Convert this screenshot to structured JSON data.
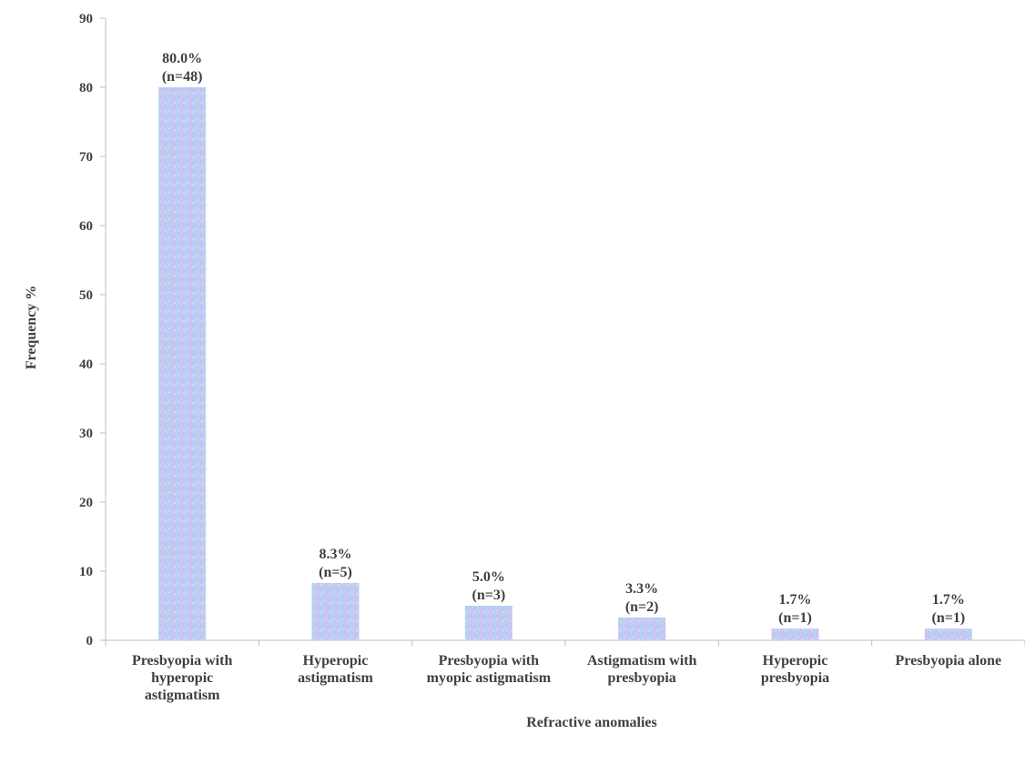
{
  "chart_data": {
    "type": "bar",
    "title": "",
    "xlabel": "Refractive anomalies",
    "ylabel": "Frequency %",
    "ylim": [
      0,
      90
    ],
    "yticks": [
      0,
      10,
      20,
      30,
      40,
      50,
      60,
      70,
      80,
      90
    ],
    "grid": false,
    "legend": "none",
    "bar_color": "#b8cdf2",
    "categories": [
      "Presbyopia with hyperopic astigmatism",
      "Hyperopic astigmatism",
      "Presbyopia with myopic astigmatism",
      "Astigmatism with presbyopia",
      "Hyperopic presbyopia",
      "Presbyopia alone"
    ],
    "category_lines": [
      [
        "Presbyopia with",
        "hyperopic",
        "astigmatism"
      ],
      [
        "Hyperopic",
        "astigmatism"
      ],
      [
        "Presbyopia with",
        "myopic astigmatism"
      ],
      [
        "Astigmatism with",
        "presbyopia"
      ],
      [
        "Hyperopic",
        "presbyopia"
      ],
      [
        "Presbyopia alone"
      ]
    ],
    "values": [
      80.0,
      8.3,
      5.0,
      3.3,
      1.7,
      1.7
    ],
    "data_labels": [
      [
        "80.0%",
        "(n=48)"
      ],
      [
        "8.3%",
        "(n=5)"
      ],
      [
        "5.0%",
        "(n=3)"
      ],
      [
        "3.3%",
        "(n=2)"
      ],
      [
        "1.7%",
        "(n=1)"
      ],
      [
        "1.7%",
        "(n=1)"
      ]
    ]
  }
}
